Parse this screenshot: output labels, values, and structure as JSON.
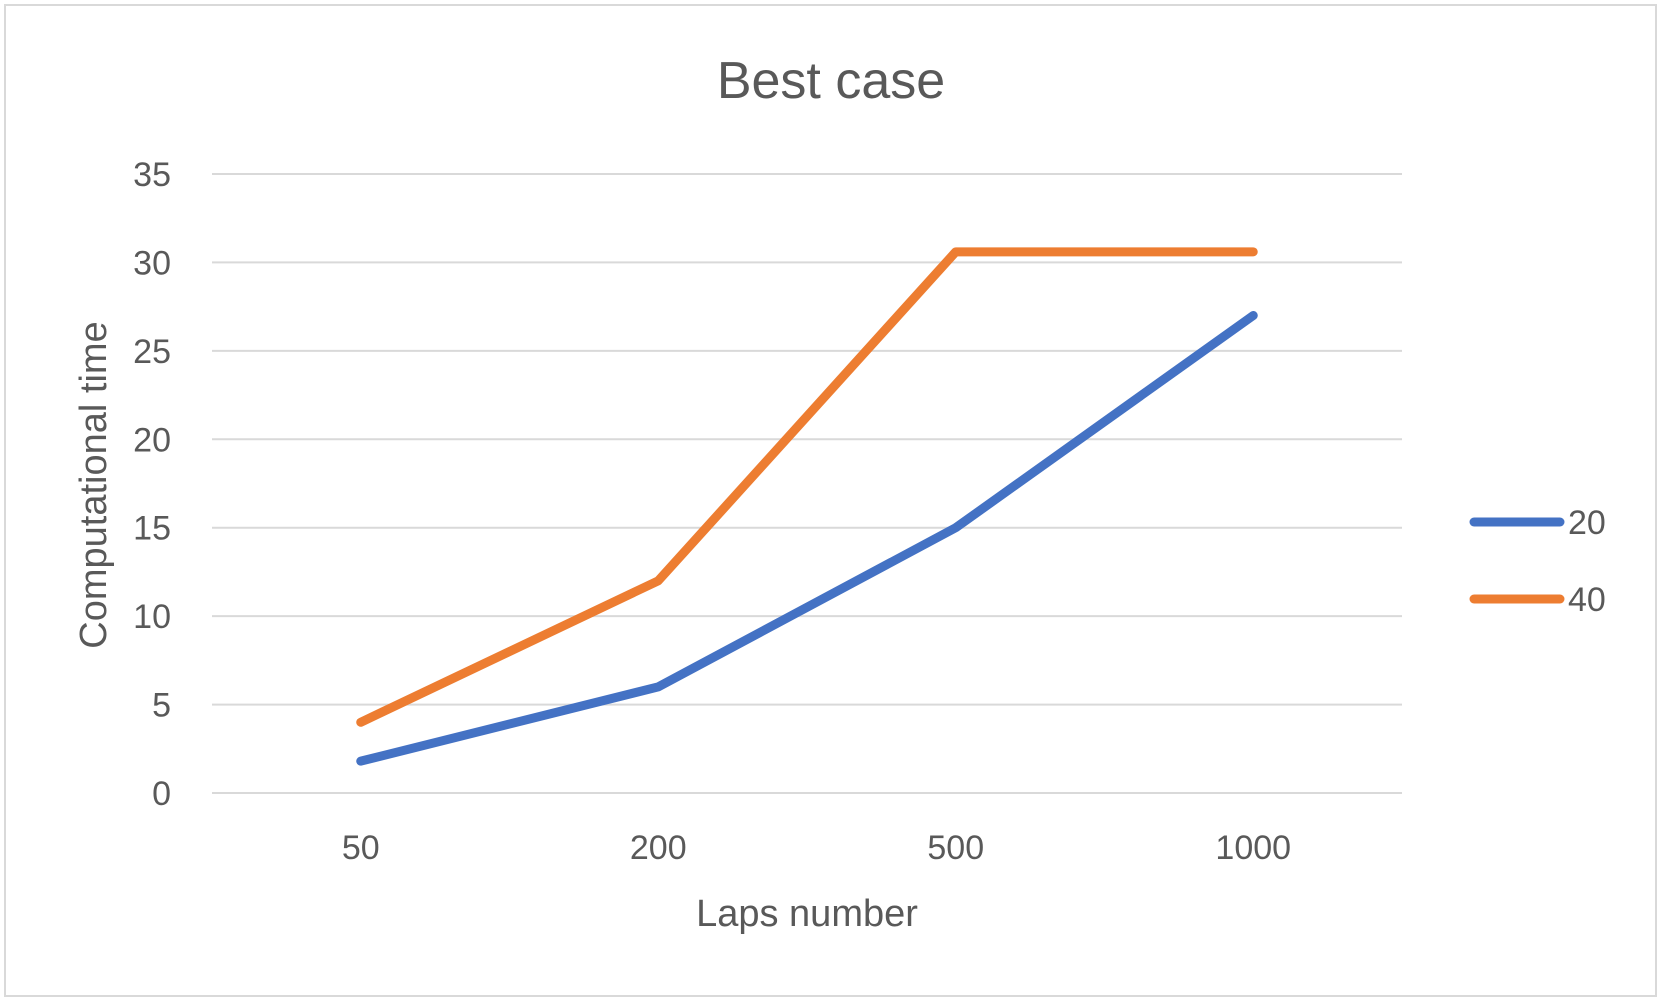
{
  "chart_data": {
    "type": "line",
    "title": "Best case",
    "xlabel": "Laps number",
    "ylabel": "Computational time",
    "categories": [
      "50",
      "200",
      "500",
      "1000"
    ],
    "ylim": [
      0,
      35
    ],
    "yticks": [
      "0",
      "5",
      "10",
      "15",
      "20",
      "25",
      "30",
      "35"
    ],
    "grid": "horizontal",
    "legend_position": "right",
    "series": [
      {
        "name": "20",
        "values": [
          1.8,
          6.0,
          15.0,
          27.0
        ],
        "color": "#4472c4"
      },
      {
        "name": "40",
        "values": [
          4.0,
          12.0,
          30.6,
          30.6
        ],
        "color": "#ed7d31"
      }
    ],
    "colors": {
      "gridline": "#d9d9d9",
      "text": "#595959",
      "border": "#d9d9d9"
    }
  }
}
